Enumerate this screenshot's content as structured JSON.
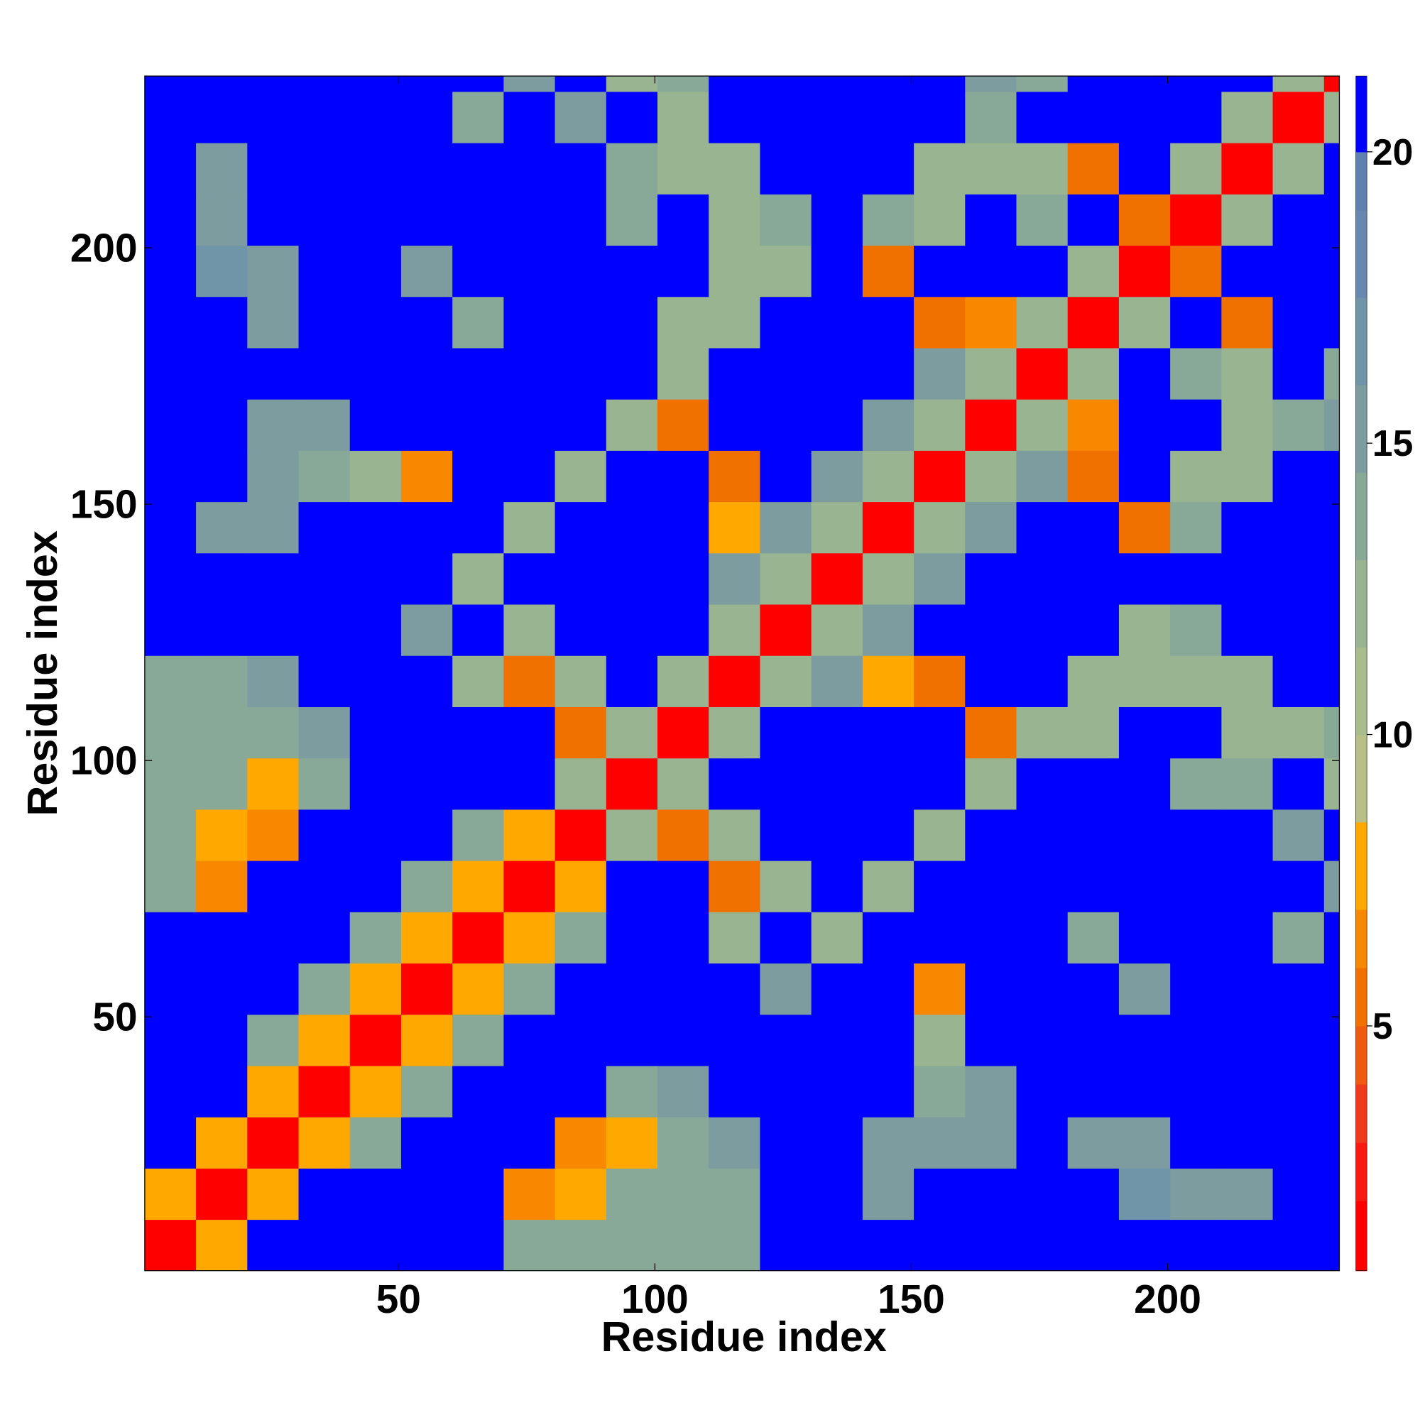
{
  "chart_data": {
    "type": "heatmap",
    "xlabel": "Residue index",
    "ylabel": "Residue index",
    "xlim": [
      0.5,
      233.5
    ],
    "ylim": [
      0.5,
      233.5
    ],
    "xticks": [
      50,
      100,
      150,
      200
    ],
    "yticks": [
      50,
      100,
      150,
      200
    ],
    "x": [
      5.5,
      15.5,
      25.5,
      35.5,
      45.5,
      55.5,
      65.5,
      75.5,
      85.5,
      95.5,
      105.5,
      115.5,
      125.5,
      135.5,
      145.5,
      155.5,
      165.5,
      175.5,
      185.5,
      195.5,
      205.5,
      215.5,
      225.5,
      235.5
    ],
    "y": [
      5.5,
      15.5,
      25.5,
      35.5,
      45.5,
      55.5,
      65.5,
      75.5,
      85.5,
      95.5,
      105.5,
      115.5,
      125.5,
      135.5,
      145.5,
      155.5,
      165.5,
      175.5,
      185.5,
      195.5,
      205.5,
      215.5,
      225.5,
      235.5
    ],
    "z": [
      [
        2,
        8,
        21,
        21,
        21,
        21,
        21,
        14,
        14,
        14,
        14,
        14,
        21,
        21,
        21,
        21,
        21,
        21,
        21,
        21,
        21,
        21,
        21,
        21
      ],
      [
        8,
        2,
        8,
        21,
        21,
        21,
        21,
        7,
        8,
        14,
        14,
        14,
        21,
        21,
        16,
        21,
        21,
        21,
        21,
        17,
        16,
        16,
        21,
        21
      ],
      [
        21,
        8,
        2,
        8,
        14,
        21,
        21,
        21,
        7,
        8,
        14,
        15,
        21,
        21,
        15,
        16,
        15,
        21,
        16,
        15,
        21,
        21,
        21,
        21
      ],
      [
        21,
        21,
        8,
        2,
        8,
        14,
        21,
        21,
        21,
        14,
        15,
        21,
        21,
        21,
        21,
        14,
        15,
        21,
        21,
        21,
        21,
        21,
        21,
        21
      ],
      [
        21,
        21,
        14,
        8,
        2,
        8,
        14,
        21,
        21,
        21,
        21,
        21,
        21,
        21,
        21,
        12,
        21,
        21,
        21,
        21,
        21,
        21,
        21,
        21
      ],
      [
        21,
        21,
        21,
        14,
        8,
        2,
        8,
        14,
        21,
        21,
        21,
        21,
        15,
        21,
        21,
        7,
        21,
        21,
        21,
        15,
        21,
        21,
        21,
        21
      ],
      [
        21,
        21,
        21,
        21,
        14,
        8,
        2,
        8,
        14,
        21,
        21,
        13,
        21,
        13,
        21,
        21,
        21,
        21,
        14,
        21,
        21,
        21,
        14,
        21
      ],
      [
        14,
        7,
        21,
        21,
        21,
        14,
        8,
        2,
        8,
        21,
        21,
        6,
        13,
        21,
        13,
        21,
        21,
        21,
        21,
        21,
        21,
        21,
        21,
        15
      ],
      [
        14,
        8,
        7,
        21,
        21,
        21,
        14,
        8,
        2,
        12,
        6,
        13,
        21,
        21,
        21,
        12,
        21,
        21,
        21,
        21,
        21,
        21,
        15,
        21
      ],
      [
        14,
        14,
        8,
        14,
        21,
        21,
        21,
        21,
        12,
        2,
        12,
        21,
        21,
        21,
        21,
        21,
        13,
        21,
        21,
        21,
        14,
        14,
        21,
        13
      ],
      [
        14,
        14,
        14,
        15,
        21,
        21,
        21,
        21,
        6,
        12,
        2,
        12,
        21,
        21,
        21,
        21,
        6,
        13,
        13,
        21,
        21,
        13,
        12,
        14
      ],
      [
        14,
        14,
        15,
        21,
        21,
        21,
        13,
        6,
        13,
        21,
        12,
        2,
        12,
        15,
        8,
        6,
        21,
        21,
        12,
        12,
        13,
        13,
        21,
        21
      ],
      [
        21,
        21,
        21,
        21,
        21,
        15,
        21,
        13,
        21,
        21,
        21,
        12,
        2,
        12,
        15,
        21,
        21,
        21,
        21,
        13,
        14,
        21,
        21,
        21
      ],
      [
        21,
        21,
        21,
        21,
        21,
        21,
        13,
        21,
        21,
        21,
        21,
        15,
        12,
        2,
        12,
        15,
        21,
        21,
        21,
        21,
        21,
        21,
        21,
        21
      ],
      [
        21,
        16,
        15,
        21,
        21,
        21,
        21,
        13,
        21,
        21,
        21,
        8,
        15,
        12,
        2,
        12,
        15,
        21,
        21,
        6,
        14,
        21,
        21,
        21
      ],
      [
        21,
        21,
        16,
        14,
        12,
        7,
        21,
        21,
        12,
        21,
        21,
        6,
        21,
        15,
        12,
        2,
        12,
        15,
        6,
        21,
        13,
        13,
        21,
        21
      ],
      [
        21,
        21,
        15,
        15,
        21,
        21,
        21,
        21,
        21,
        13,
        6,
        21,
        21,
        21,
        15,
        12,
        2,
        12,
        7,
        21,
        21,
        13,
        14,
        15
      ],
      [
        21,
        21,
        21,
        21,
        21,
        21,
        21,
        21,
        21,
        21,
        13,
        21,
        21,
        21,
        21,
        15,
        12,
        2,
        12,
        21,
        14,
        13,
        21,
        14
      ],
      [
        21,
        21,
        16,
        21,
        21,
        21,
        14,
        21,
        21,
        21,
        13,
        12,
        21,
        21,
        21,
        6,
        7,
        12,
        2,
        12,
        21,
        6,
        21,
        21
      ],
      [
        21,
        17,
        15,
        21,
        21,
        15,
        21,
        21,
        21,
        21,
        21,
        12,
        13,
        21,
        6,
        21,
        21,
        21,
        12,
        2,
        6,
        21,
        21,
        21
      ],
      [
        21,
        16,
        21,
        21,
        21,
        21,
        21,
        21,
        21,
        14,
        21,
        13,
        14,
        21,
        14,
        13,
        21,
        14,
        21,
        6,
        2,
        12,
        21,
        21
      ],
      [
        21,
        16,
        21,
        21,
        21,
        21,
        21,
        21,
        21,
        14,
        13,
        13,
        21,
        21,
        21,
        13,
        13,
        13,
        6,
        21,
        12,
        2,
        12,
        21
      ],
      [
        21,
        21,
        21,
        21,
        21,
        21,
        14,
        21,
        15,
        21,
        12,
        21,
        21,
        21,
        21,
        21,
        14,
        21,
        21,
        21,
        21,
        12,
        2,
        12
      ],
      [
        21,
        21,
        21,
        21,
        21,
        21,
        21,
        15,
        21,
        13,
        14,
        21,
        21,
        21,
        21,
        21,
        15,
        14,
        21,
        21,
        21,
        21,
        12,
        2
      ]
    ],
    "colorbar": {
      "zlim": [
        0.8,
        21.3
      ],
      "ticks": [
        5,
        10,
        15,
        20
      ],
      "levels": [
        0.8,
        2,
        3,
        4,
        5,
        6,
        7,
        8.5,
        10,
        11.5,
        13,
        14.5,
        16,
        17.5,
        19,
        20,
        21.3
      ],
      "colors": [
        "#ff0000",
        "#f81a10",
        "#f03a20",
        "#f05a10",
        "#f07000",
        "#f88800",
        "#ffa800",
        "#b8c088",
        "#a8bc8c",
        "#98b490",
        "#88a898",
        "#7c9ca0",
        "#7094a8",
        "#6888b0",
        "#6080b0",
        "#0000ff"
      ]
    }
  }
}
